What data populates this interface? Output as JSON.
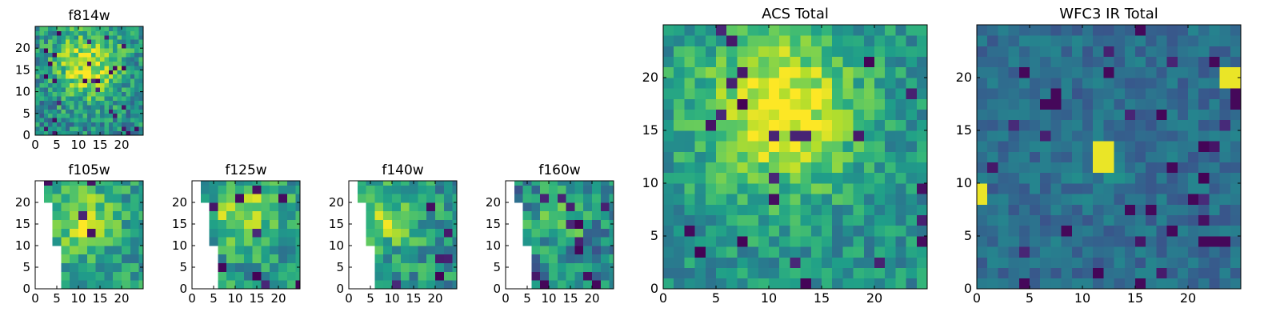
{
  "figure": {
    "colormap": "viridis",
    "grid": false,
    "legend": "none"
  },
  "chart_data": [
    {
      "type": "heatmap",
      "title": "f814w",
      "xlim": [
        0,
        25
      ],
      "ylim": [
        0,
        25
      ],
      "xticks": [
        "0",
        "5",
        "10",
        "15",
        "20"
      ],
      "yticks": [
        "0",
        "5",
        "10",
        "15",
        "20"
      ],
      "coverage": "full",
      "pixel_size": 1,
      "brightest_region": "diffuse yellow blob centred near x 12, y 16; low-level noise elsewhere"
    },
    {
      "type": "heatmap",
      "title": "f105w",
      "xlim": [
        0,
        25
      ],
      "ylim": [
        0,
        25
      ],
      "xticks": [
        "0",
        "5",
        "10",
        "15",
        "20"
      ],
      "yticks": [
        "0",
        "5",
        "10",
        "15",
        "20"
      ],
      "coverage": "partial: empty (white) wedge in lower-left, data boundary from about (2, 24) to (7, 0)",
      "pixel_size": 2,
      "brightest_region": "yellow patch near x 11, y 17"
    },
    {
      "type": "heatmap",
      "title": "f125w",
      "xlim": [
        0,
        25
      ],
      "ylim": [
        0,
        25
      ],
      "xticks": [
        "0",
        "5",
        "10",
        "15",
        "20"
      ],
      "yticks": [
        "0",
        "5",
        "10",
        "15",
        "20"
      ],
      "coverage": "partial: empty (white) wedge in lower-left, data boundary from about (2, 24) to (7, 0)",
      "pixel_size": 2,
      "brightest_region": "yellow patches near x 10-15, y 16-20"
    },
    {
      "type": "heatmap",
      "title": "f140w",
      "xlim": [
        0,
        25
      ],
      "ylim": [
        0,
        25
      ],
      "xticks": [
        "0",
        "5",
        "10",
        "15",
        "20"
      ],
      "yticks": [
        "0",
        "5",
        "10",
        "15",
        "20"
      ],
      "coverage": "partial: empty (white) wedge in lower-left, data boundary from about (2, 24) to (7, 0)",
      "pixel_size": 2,
      "brightest_region": "yellow patch near x 9, y 20 and x 8, y 9"
    },
    {
      "type": "heatmap",
      "title": "f160w",
      "xlim": [
        0,
        25
      ],
      "ylim": [
        0,
        25
      ],
      "xticks": [
        "0",
        "5",
        "10",
        "15",
        "20"
      ],
      "yticks": [
        "0",
        "5",
        "10",
        "15",
        "20"
      ],
      "coverage": "partial: empty (white) wedge in lower-left, data boundary from about (2, 24) to (7, 0)",
      "pixel_size": 2,
      "brightest_region": "yellow patch near x 13, y 17; dark pixels near x 14, y 2"
    },
    {
      "type": "heatmap",
      "title": "ACS Total",
      "xlim": [
        0,
        25
      ],
      "ylim": [
        0,
        25
      ],
      "xticks": [
        "0",
        "5",
        "10",
        "15",
        "20"
      ],
      "yticks": [
        "0",
        "5",
        "10",
        "15",
        "20"
      ],
      "coverage": "full",
      "pixel_size": 1,
      "brightest_region": "bright yellow column near x 10-12, y 16-20 spreading toward x 14, y 14"
    },
    {
      "type": "heatmap",
      "title": "WFC3 IR Total",
      "xlim": [
        0,
        25
      ],
      "ylim": [
        0,
        25
      ],
      "xticks": [
        "0",
        "5",
        "10",
        "15",
        "20"
      ],
      "yticks": [
        "0",
        "5",
        "10",
        "15",
        "20"
      ],
      "coverage": "full",
      "pixel_size": 1,
      "brightest_region": "three yellow spots: x 11.5, y 12.5; x 23.5, y 19.5; x 0, y 9"
    }
  ]
}
